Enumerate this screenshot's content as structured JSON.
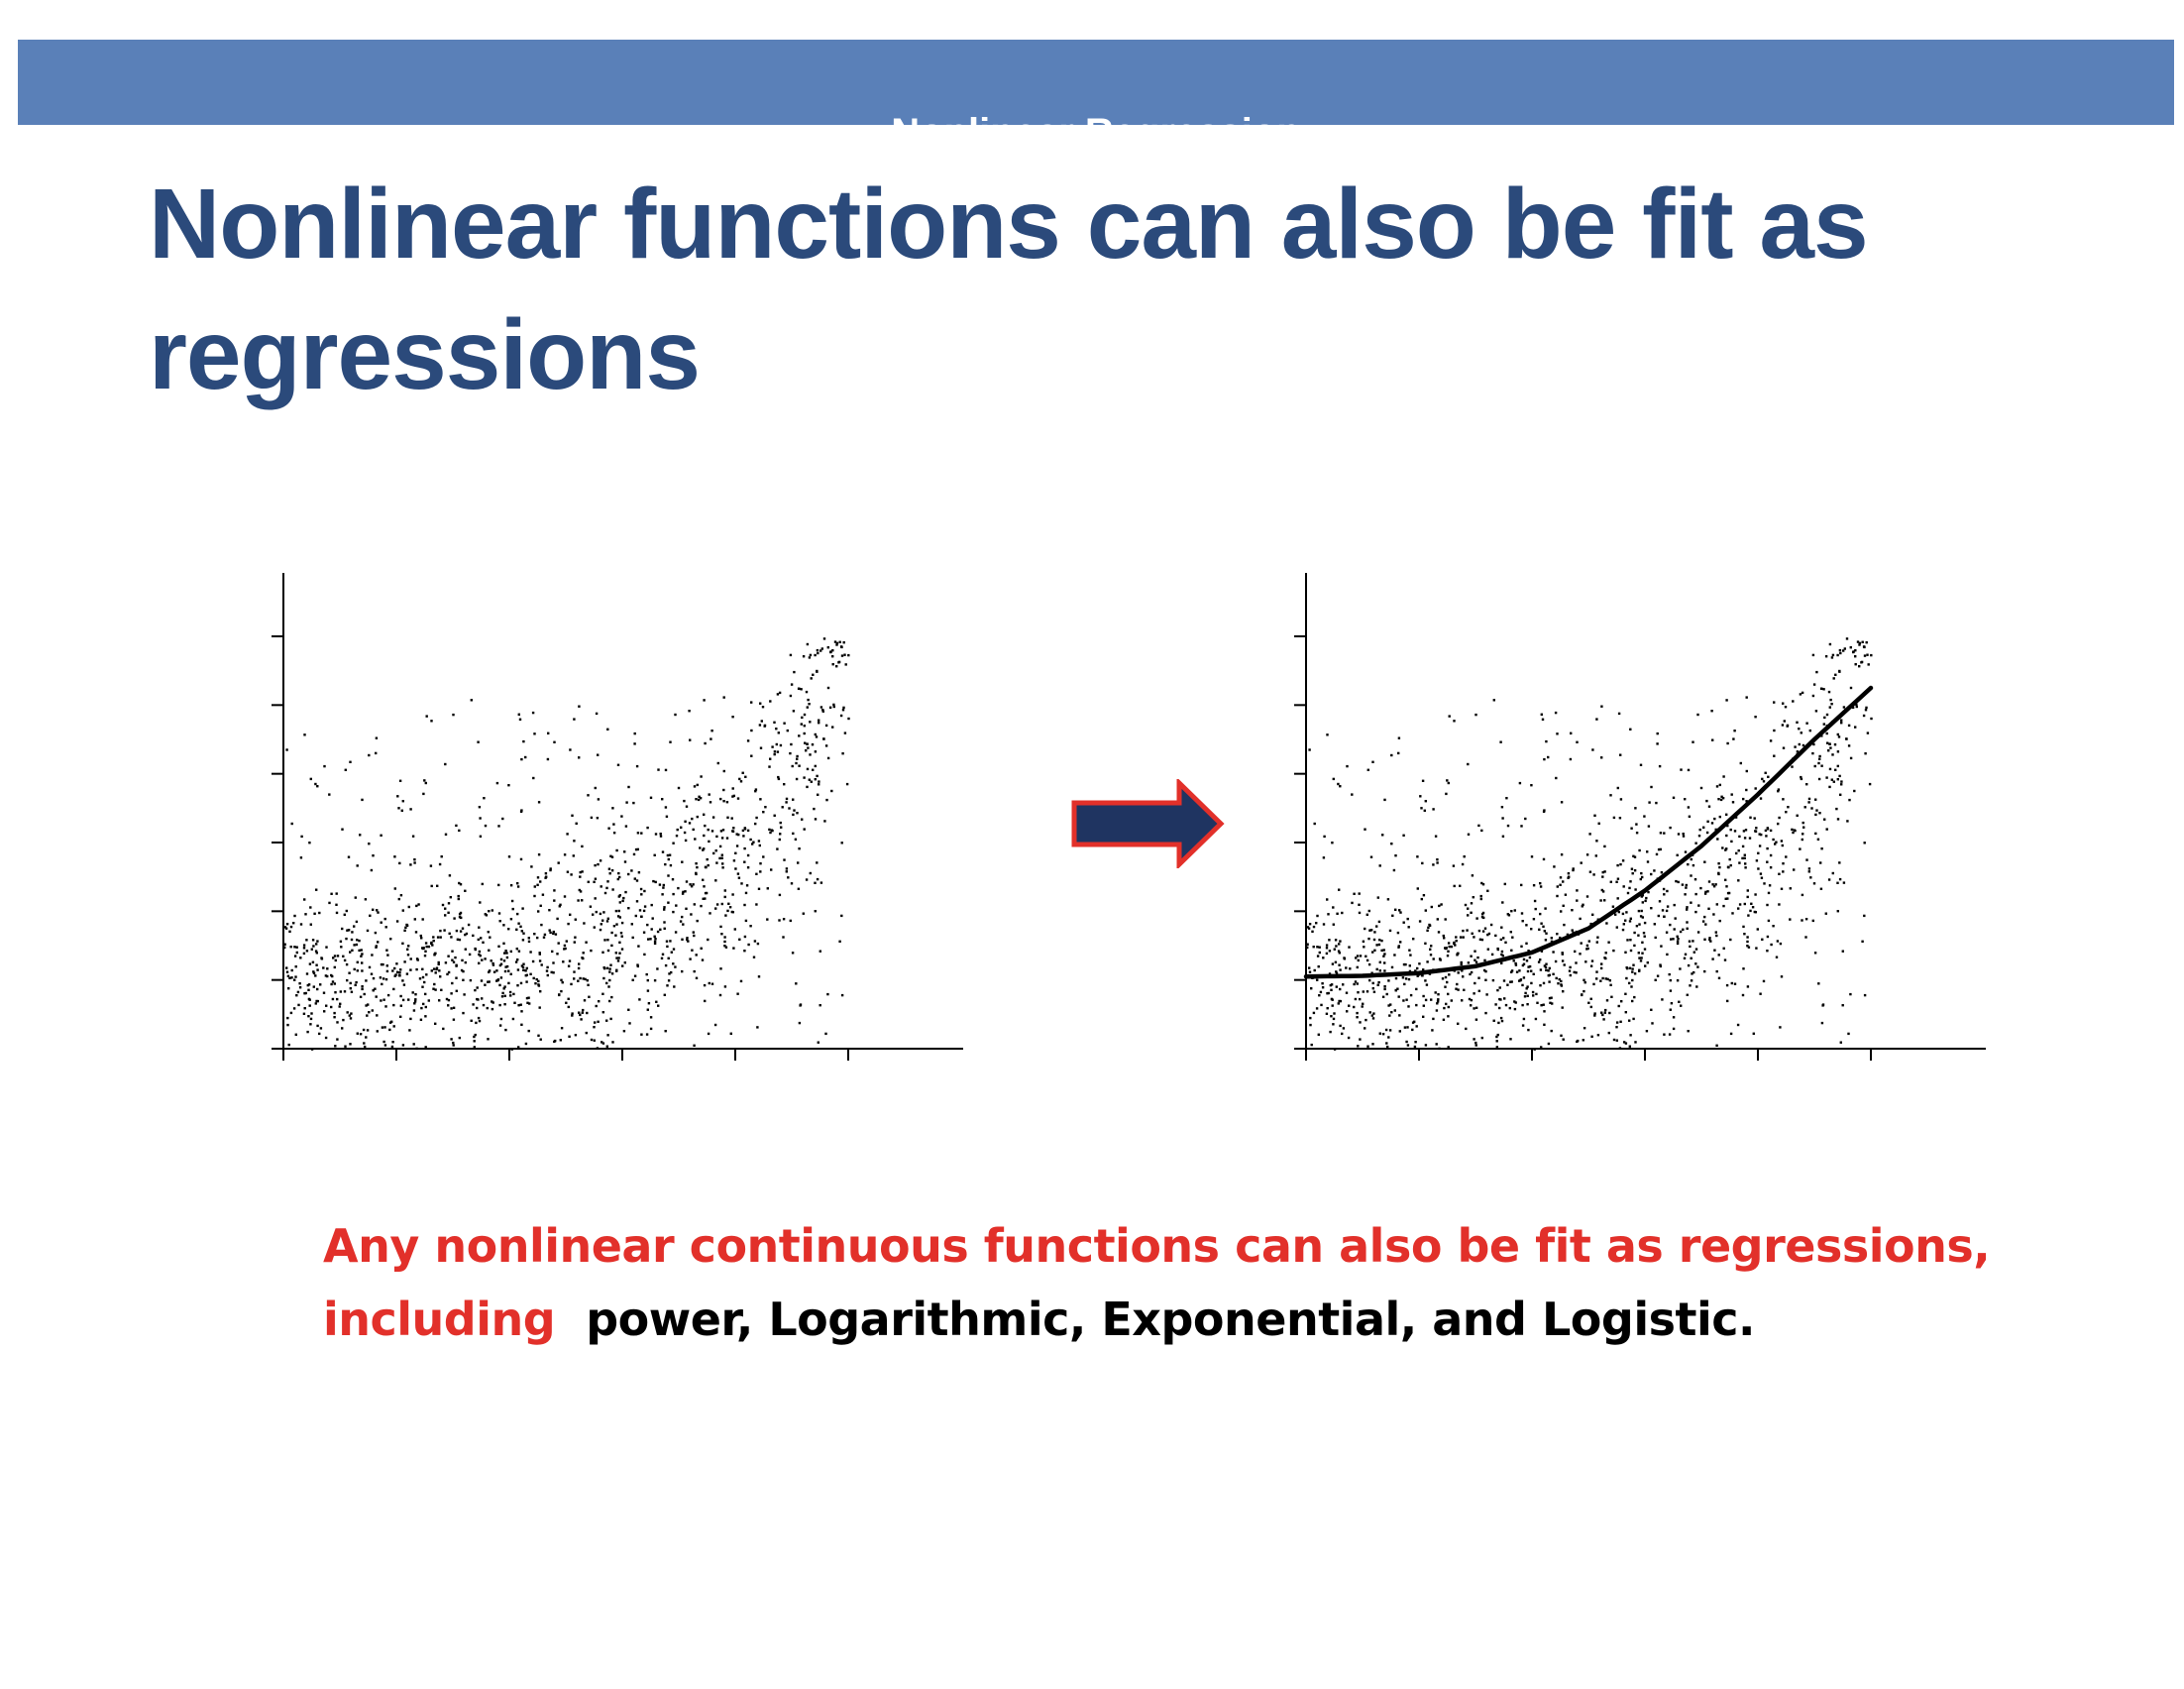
{
  "header": {
    "text": "Nonlinear Regression",
    "color": "#5a80b8"
  },
  "slide": {
    "title": "Nonlinear functions can also be fit as regressions"
  },
  "caption": {
    "line1_red": "Any nonlinear continuous functions can also be fit as regressions,",
    "line2_red": "including",
    "line2_black": "power, Logarithmic, Exponential, and Logistic."
  },
  "colors": {
    "title": "#2b4a7b",
    "caption_red": "#e2302a",
    "arrow_fill": "#1f3461",
    "arrow_stroke": "#e2302a"
  },
  "arrow": {
    "icon": "right-arrow-icon"
  },
  "chart_data": [
    {
      "type": "scatter",
      "title": "",
      "xlabel": "",
      "ylabel": "",
      "xlim": [
        0,
        5
      ],
      "ylim": [
        0,
        6
      ],
      "xticks": [
        0,
        1,
        2,
        3,
        4,
        5
      ],
      "yticks": [
        0,
        1,
        2,
        3,
        4,
        5,
        6
      ],
      "grid": false,
      "legend": "none",
      "points": {
        "count": 1400,
        "trend_fraction": 0.78,
        "trend_model": "exponential",
        "noise_sd": 0.65,
        "background": "uniform scatter across plot"
      }
    },
    {
      "type": "scatter",
      "title": "",
      "xlabel": "",
      "ylabel": "",
      "xlim": [
        0,
        5
      ],
      "ylim": [
        0,
        6
      ],
      "xticks": [
        0,
        1,
        2,
        3,
        4,
        5
      ],
      "yticks": [
        0,
        1,
        2,
        3,
        4,
        5,
        6
      ],
      "grid": false,
      "legend": "none",
      "points": {
        "count": 1400,
        "trend_fraction": 0.78,
        "trend_model": "exponential",
        "noise_sd": 0.65,
        "background": "uniform scatter across plot"
      },
      "fit": {
        "model": "exponential",
        "x": [
          0,
          0.5,
          1,
          1.5,
          2,
          2.5,
          3,
          3.5,
          4,
          4.5,
          5
        ],
        "y": [
          1.05,
          1.06,
          1.1,
          1.2,
          1.4,
          1.75,
          2.3,
          2.95,
          3.7,
          4.5,
          5.25
        ]
      }
    }
  ]
}
